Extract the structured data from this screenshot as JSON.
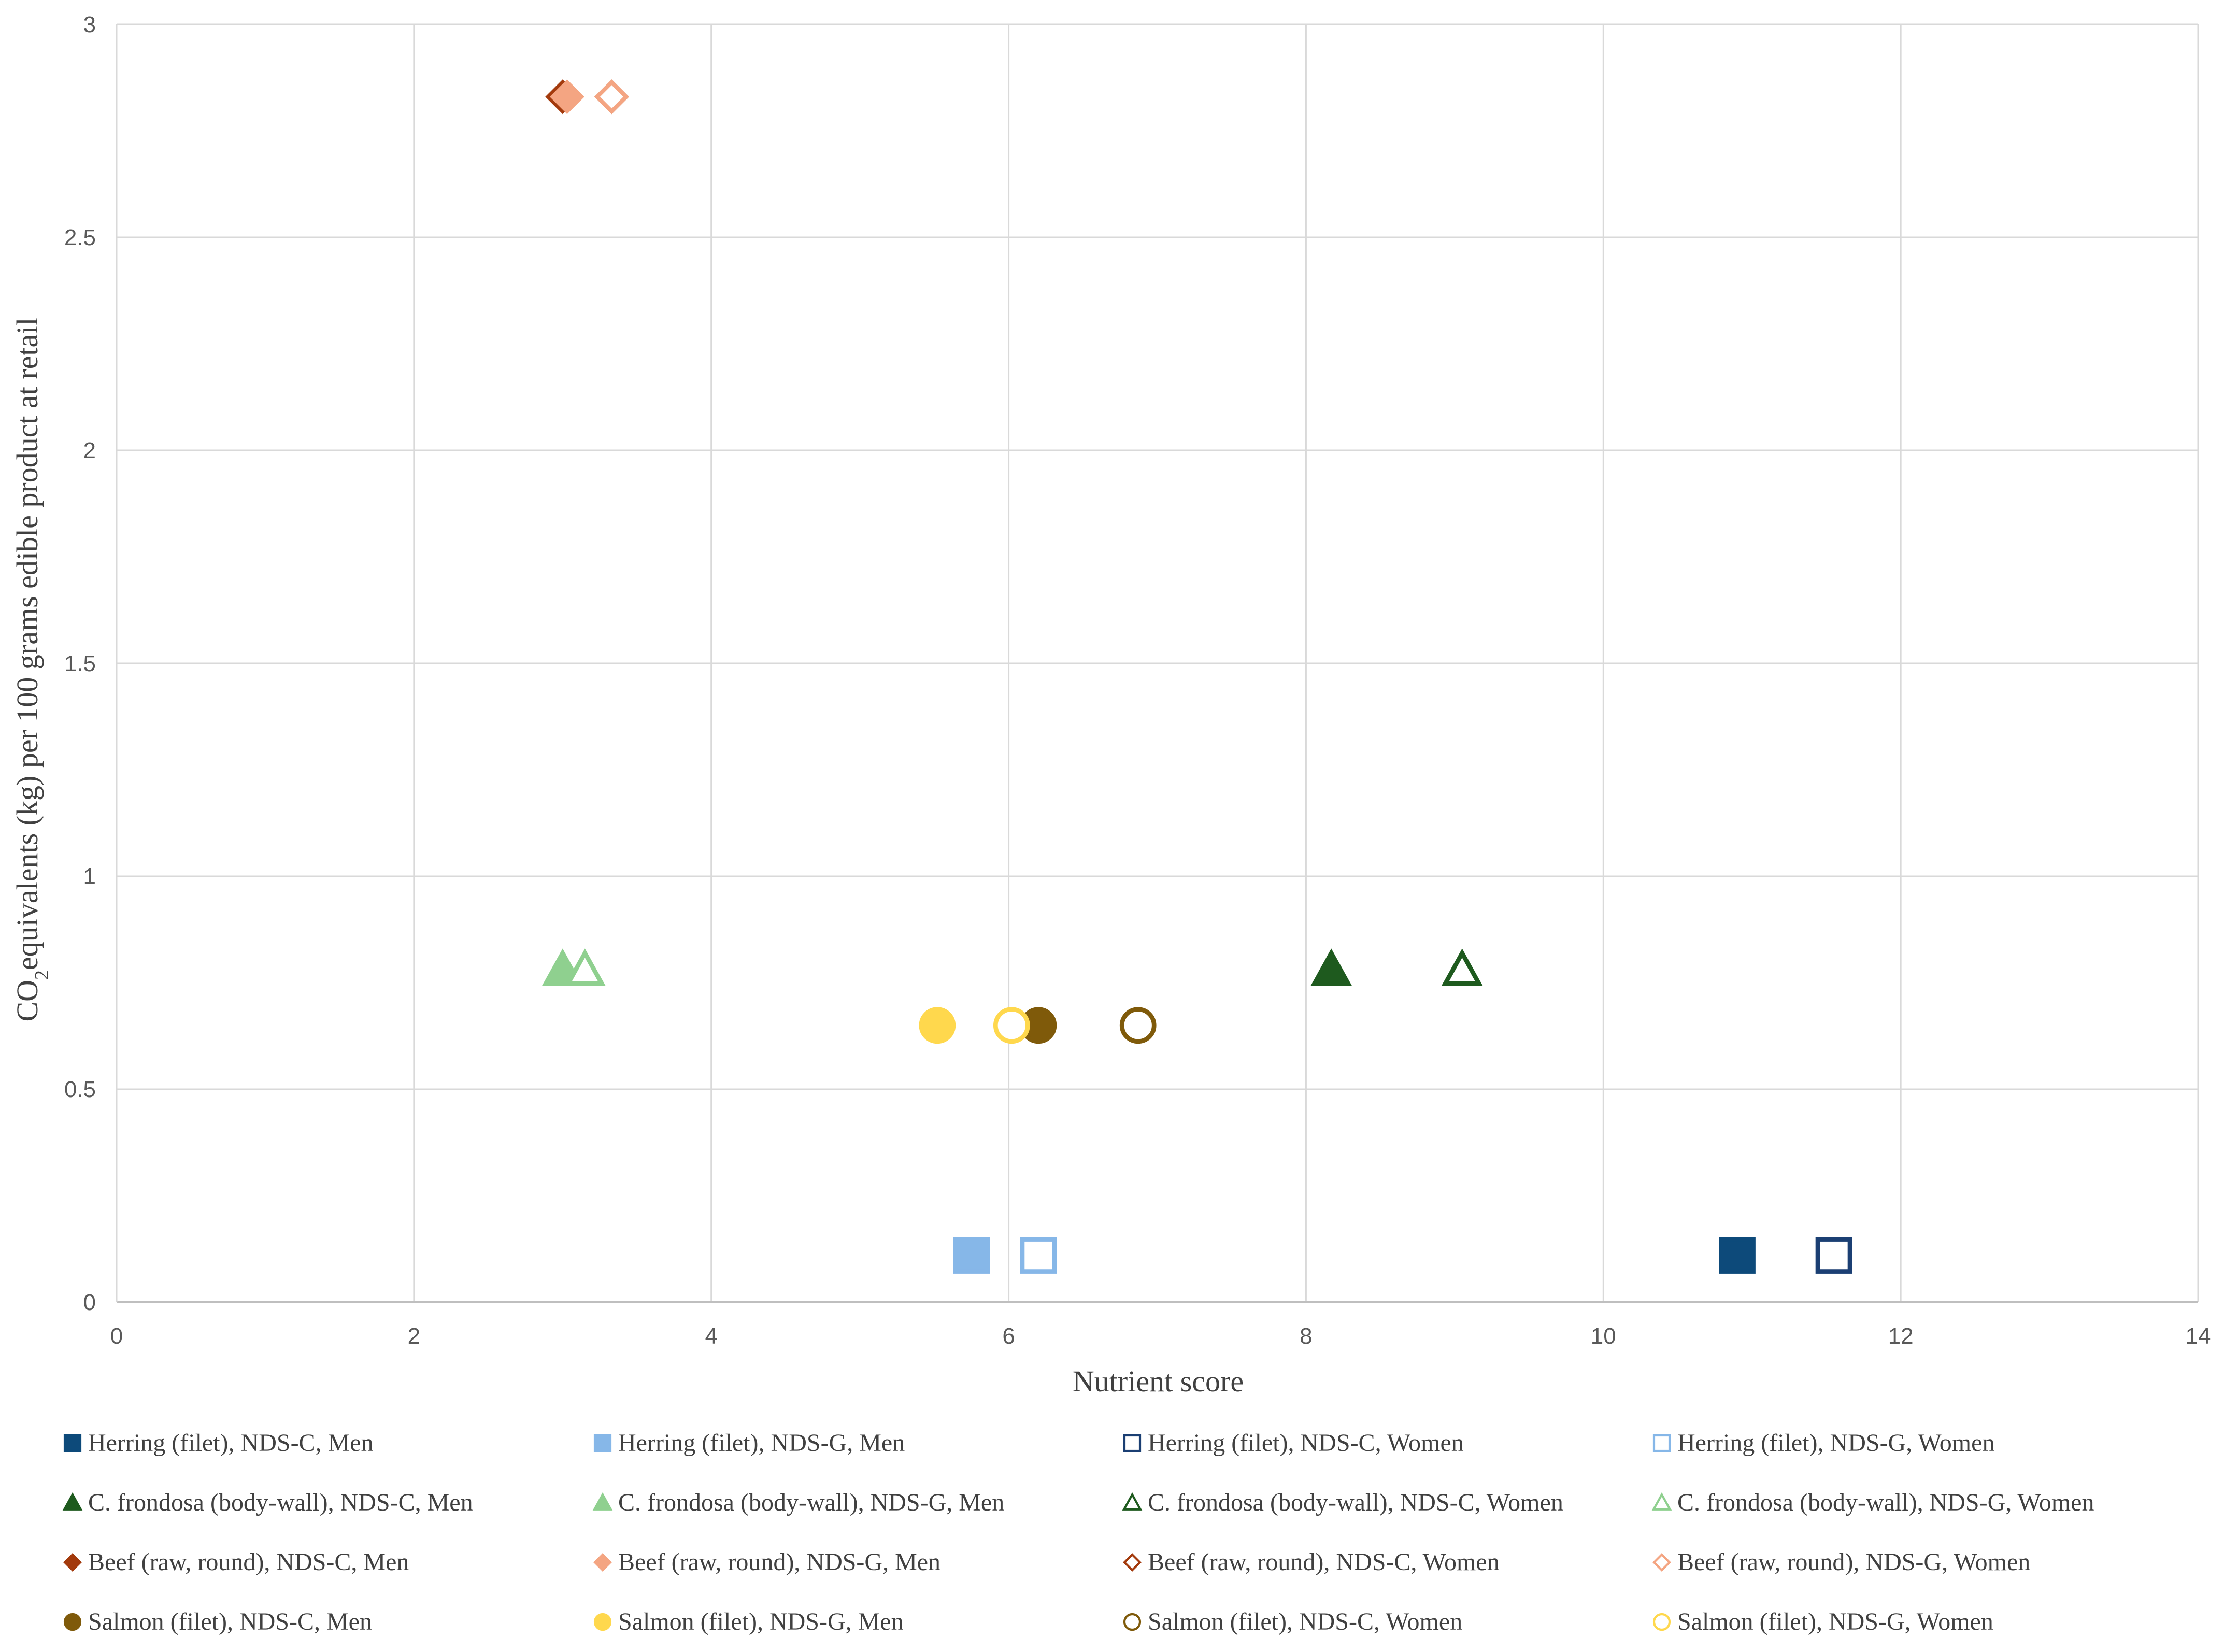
{
  "chart_data": {
    "type": "scatter",
    "title": "",
    "xlabel": "Nutrient score",
    "ylabel_main": "CO",
    "ylabel_sub": "2",
    "ylabel_rest": "equivalents (kg) per 100 grams edible product at retail",
    "xlim": [
      0,
      14
    ],
    "ylim": [
      0,
      3
    ],
    "x_ticks": [
      0,
      2,
      4,
      6,
      8,
      10,
      12,
      14
    ],
    "y_ticks": [
      0,
      0.5,
      1,
      1.5,
      2,
      2.5,
      3
    ],
    "x_tick_labels": [
      "0",
      "2",
      "4",
      "6",
      "8",
      "10",
      "12",
      "14"
    ],
    "y_tick_labels": [
      "0",
      "0.5",
      "1",
      "1.5",
      "2",
      "2.5",
      "3"
    ],
    "grid": true,
    "legend_position": "bottom",
    "series": [
      {
        "name": "Herring (filet), NDS-C, Men",
        "marker": "square",
        "filled": true,
        "color": "#0d4a7a",
        "x": 10.9,
        "y": 0.11
      },
      {
        "name": "Herring (filet), NDS-G, Men",
        "marker": "square",
        "filled": true,
        "color": "#86b7e8",
        "x": 5.75,
        "y": 0.11
      },
      {
        "name": "Herring (filet), NDS-C, Women",
        "marker": "square",
        "filled": false,
        "color": "#1b3f73",
        "x": 11.55,
        "y": 0.11
      },
      {
        "name": "Herring (filet), NDS-G, Women",
        "marker": "square",
        "filled": false,
        "color": "#86b7e8",
        "x": 6.2,
        "y": 0.11
      },
      {
        "name": "C. frondosa (body-wall), NDS-C, Men",
        "marker": "triangle",
        "filled": true,
        "color": "#1e5a1e",
        "x": 8.17,
        "y": 0.78
      },
      {
        "name": "C. frondosa (body-wall), NDS-G, Men",
        "marker": "triangle",
        "filled": true,
        "color": "#8fd08f",
        "x": 3.0,
        "y": 0.78
      },
      {
        "name": "C. frondosa (body-wall), NDS-C, Women",
        "marker": "triangle",
        "filled": false,
        "color": "#1e5a1e",
        "x": 9.05,
        "y": 0.78
      },
      {
        "name": "C. frondosa (body-wall), NDS-G, Women",
        "marker": "triangle",
        "filled": false,
        "color": "#8fd08f",
        "x": 3.15,
        "y": 0.78
      },
      {
        "name": "Beef (raw, round), NDS-C, Men",
        "marker": "diamond",
        "filled": true,
        "color": "#a33a0c",
        "x": 3.0,
        "y": 2.83
      },
      {
        "name": "Beef (raw, round), NDS-G, Men",
        "marker": "diamond",
        "filled": true,
        "color": "#f4a582",
        "x": 3.03,
        "y": 2.83
      },
      {
        "name": "Beef (raw, round), NDS-C, Women",
        "marker": "diamond",
        "filled": false,
        "color": "#a33a0c",
        "x": 3.33,
        "y": 2.83
      },
      {
        "name": "Beef (raw, round), NDS-G, Women",
        "marker": "diamond",
        "filled": false,
        "color": "#f4a582",
        "x": 3.33,
        "y": 2.83
      },
      {
        "name": "Salmon (filet), NDS-C, Men",
        "marker": "circle",
        "filled": true,
        "color": "#7f5a0a",
        "x": 6.2,
        "y": 0.65
      },
      {
        "name": "Salmon (filet), NDS-G, Men",
        "marker": "circle",
        "filled": true,
        "color": "#ffd84d",
        "x": 5.52,
        "y": 0.65
      },
      {
        "name": "Salmon (filet), NDS-C, Women",
        "marker": "circle",
        "filled": false,
        "color": "#7f5a0a",
        "x": 6.87,
        "y": 0.65
      },
      {
        "name": "Salmon (filet), NDS-G, Women",
        "marker": "circle",
        "filled": false,
        "color": "#ffd84d",
        "x": 6.02,
        "y": 0.65
      }
    ]
  }
}
